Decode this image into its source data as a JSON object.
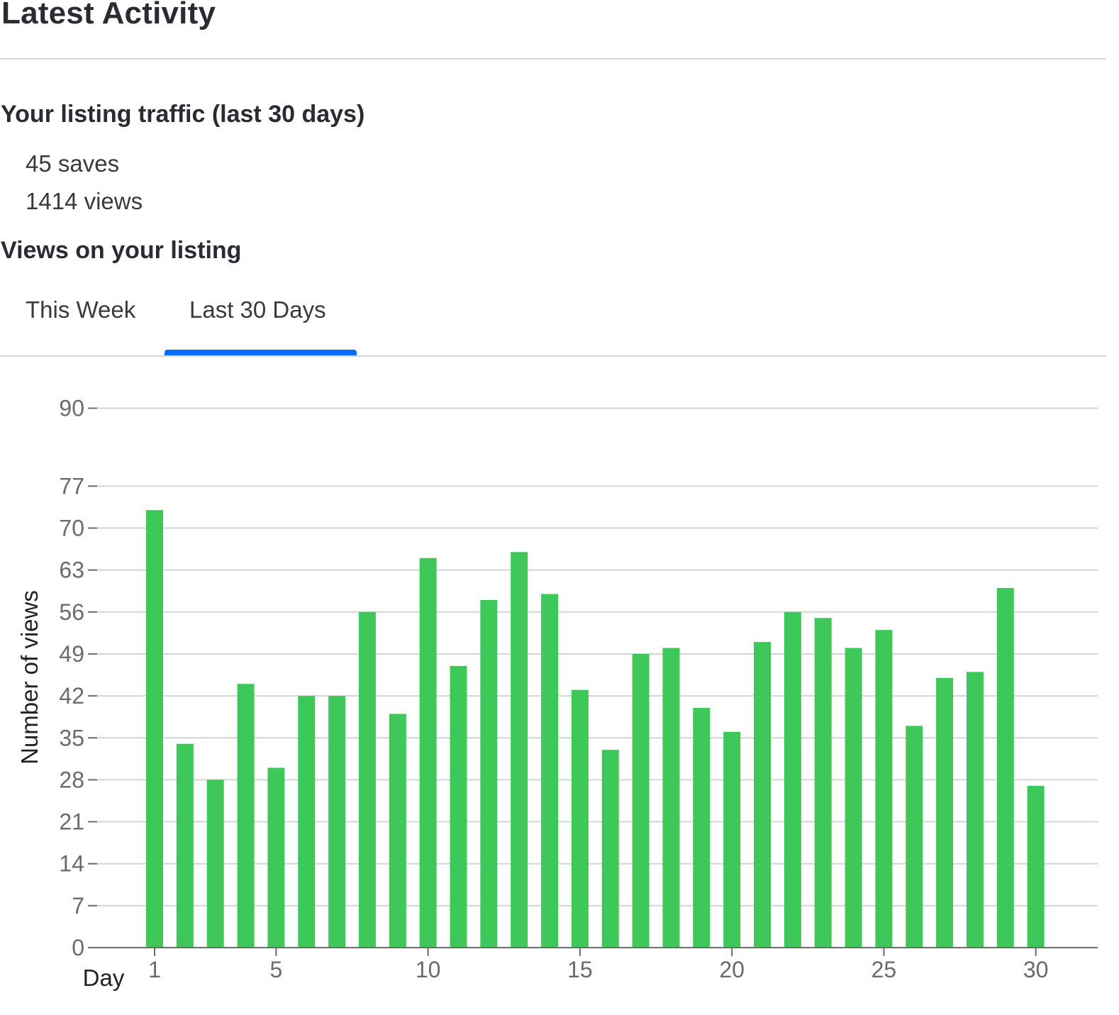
{
  "header": {
    "title": "Latest Activity"
  },
  "traffic": {
    "title": "Your listing traffic (last 30 days)",
    "saves": "45 saves",
    "views": "1414 views"
  },
  "views_section": {
    "title": "Views on your listing",
    "tabs": [
      {
        "label": "This Week",
        "selected": false
      },
      {
        "label": "Last 30 Days",
        "selected": true
      }
    ]
  },
  "colors": {
    "bar": "#3fc85a",
    "tab_indicator": "#0a6cff",
    "grid": "#d4d4d4",
    "axis": "#6e6e6e",
    "tick_text": "#6b6b6b"
  },
  "chart_data": {
    "type": "bar",
    "title": "",
    "xlabel": "Day",
    "ylabel": "Number of views",
    "x": [
      1,
      2,
      3,
      4,
      5,
      6,
      7,
      8,
      9,
      10,
      11,
      12,
      13,
      14,
      15,
      16,
      17,
      18,
      19,
      20,
      21,
      22,
      23,
      24,
      25,
      26,
      27,
      28,
      29,
      30
    ],
    "values": [
      73,
      34,
      28,
      44,
      30,
      42,
      42,
      56,
      39,
      65,
      47,
      58,
      66,
      59,
      43,
      33,
      49,
      50,
      40,
      36,
      51,
      56,
      55,
      50,
      53,
      37,
      45,
      46,
      60,
      27
    ],
    "x_ticks": [
      "1",
      "5",
      "10",
      "15",
      "20",
      "25",
      "30"
    ],
    "x_tick_values": [
      1,
      5,
      10,
      15,
      20,
      25,
      30
    ],
    "y_ticks": [
      "0",
      "7",
      "14",
      "21",
      "28",
      "35",
      "42",
      "49",
      "56",
      "63",
      "70",
      "77",
      "90"
    ],
    "y_tick_values": [
      0,
      7,
      14,
      21,
      28,
      35,
      42,
      49,
      56,
      63,
      70,
      77,
      90
    ],
    "ylim": [
      0,
      90
    ],
    "grid": true
  }
}
